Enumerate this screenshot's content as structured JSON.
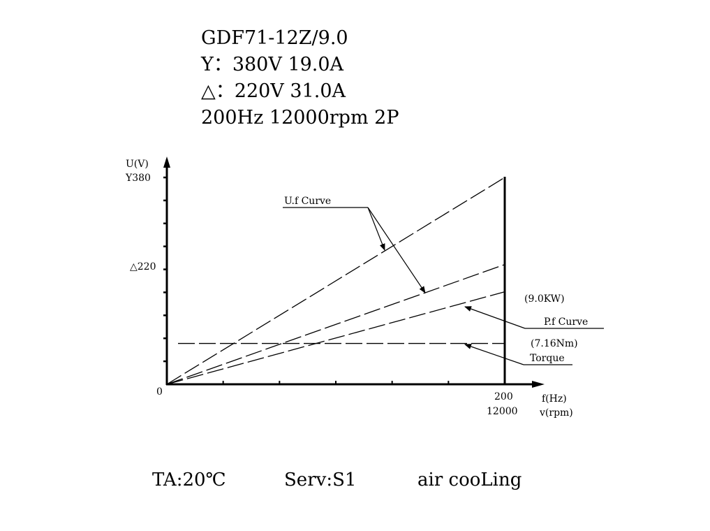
{
  "header": {
    "model": "GDF71-12Z/9.0",
    "y_rating": "Y：380V 19.0A",
    "delta_rating": "△：220V 31.0A",
    "speed_rating": "200Hz 12000rpm 2P"
  },
  "footer": {
    "ambient": "TA:20℃",
    "service": "Serv:S1",
    "cooling": "air cooLing"
  },
  "chart_data": {
    "type": "line",
    "xlabel": "f(Hz)",
    "xlabel2": "v(rpm)",
    "ylabel": "U(V)",
    "xlim": [
      0,
      220
    ],
    "ylim": [
      0,
      400
    ],
    "x_tick_count": 6,
    "y_tick_count": 9,
    "origin_label": "0",
    "x_tick_labels": [
      {
        "value": 200,
        "line1": "200",
        "line2": "12000"
      }
    ],
    "y_tick_labels": [
      {
        "value": 380,
        "text": "Y380"
      },
      {
        "value": 220,
        "text": "△220"
      }
    ],
    "series": [
      {
        "values": [
          [
            0,
            0
          ],
          [
            200,
            380
          ]
        ]
      },
      {
        "values": [
          [
            0,
            0
          ],
          [
            200,
            220
          ]
        ]
      },
      {
        "values": [
          [
            0,
            0
          ],
          [
            200,
            170
          ]
        ]
      },
      {
        "values": [
          [
            0,
            75
          ],
          [
            200,
            75
          ]
        ]
      }
    ],
    "annotations": {
      "uf_curve": "U.f Curve",
      "power": "(9.0KW)",
      "pf_curve": "P.f Curve",
      "torque_value": "(7.16Nm)",
      "torque": "Torque"
    }
  }
}
